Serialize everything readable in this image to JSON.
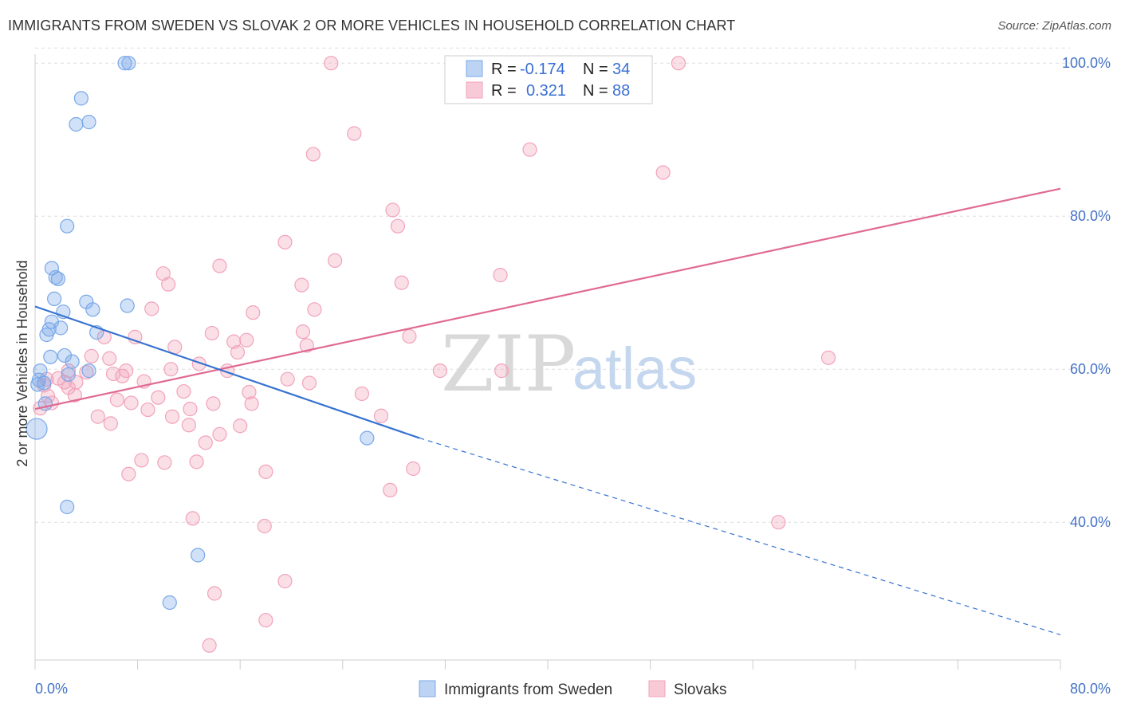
{
  "title": "IMMIGRANTS FROM SWEDEN VS SLOVAK 2 OR MORE VEHICLES IN HOUSEHOLD CORRELATION CHART",
  "source": "Source: ZipAtlas.com",
  "watermark": {
    "zip": "ZIP",
    "atlas": "atlas"
  },
  "legend_box": {
    "rows": [
      {
        "r_label": "R =",
        "r_value": "-0.174",
        "n_label": "N =",
        "n_value": "34"
      },
      {
        "r_label": "R =",
        "r_value": "0.321",
        "n_label": "N =",
        "n_value": "88"
      }
    ]
  },
  "chart_data": {
    "type": "scatter",
    "title": "IMMIGRANTS FROM SWEDEN VS SLOVAK 2 OR MORE VEHICLES IN HOUSEHOLD CORRELATION CHART",
    "xlabel": "",
    "ylabel": "2 or more Vehicles in Household",
    "xlim": [
      0,
      80
    ],
    "ylim": [
      22,
      102
    ],
    "x_tick_labels": [
      "0.0%",
      "80.0%"
    ],
    "y_ticks": [
      40,
      60,
      80,
      100
    ],
    "y_tick_labels": [
      "40.0%",
      "60.0%",
      "80.0%",
      "100.0%"
    ],
    "grid": true,
    "legend_placement": "bottom",
    "colors": {
      "Immigrants from Sweden": "#7aa8e8",
      "Slovaks": "#f2a3bb",
      "sweden_line": "#3572d0",
      "slovak_line": "#e06a93"
    },
    "series": [
      {
        "name": "Immigrants from Sweden",
        "r": -0.174,
        "n": 34,
        "trend": {
          "x0": 0,
          "y0": 68.2,
          "x1": 30,
          "y1": 51.0,
          "dashed_to_x": 80,
          "dashed_to_y": 25.3
        },
        "points": [
          [
            7.0,
            100.0
          ],
          [
            7.3,
            100.0
          ],
          [
            3.6,
            95.4
          ],
          [
            3.2,
            92.0
          ],
          [
            4.2,
            92.3
          ],
          [
            2.5,
            78.7
          ],
          [
            1.3,
            73.2
          ],
          [
            1.6,
            72.0
          ],
          [
            1.8,
            71.8
          ],
          [
            1.5,
            69.2
          ],
          [
            4.0,
            68.8
          ],
          [
            7.2,
            68.3
          ],
          [
            2.2,
            67.5
          ],
          [
            4.5,
            67.8
          ],
          [
            1.3,
            66.2
          ],
          [
            1.1,
            65.2
          ],
          [
            0.9,
            64.5
          ],
          [
            2.0,
            65.4
          ],
          [
            4.8,
            64.8
          ],
          [
            1.2,
            61.6
          ],
          [
            2.3,
            61.8
          ],
          [
            2.9,
            61.0
          ],
          [
            0.4,
            59.8
          ],
          [
            2.6,
            59.3
          ],
          [
            4.2,
            59.8
          ],
          [
            0.3,
            58.6
          ],
          [
            0.7,
            58.2
          ],
          [
            0.2,
            58.0
          ],
          [
            0.8,
            55.5
          ],
          [
            0.0,
            52.2
          ],
          [
            25.9,
            51.0
          ],
          [
            2.5,
            42.0
          ],
          [
            12.7,
            35.7
          ],
          [
            10.5,
            29.5
          ]
        ]
      },
      {
        "name": "Slovaks",
        "r": 0.321,
        "n": 88,
        "trend": {
          "x0": 0,
          "y0": 54.8,
          "x1": 80,
          "y1": 83.6
        },
        "points": [
          [
            23.1,
            100.0
          ],
          [
            37.5,
            100.0
          ],
          [
            50.2,
            100.0
          ],
          [
            24.9,
            90.8
          ],
          [
            21.7,
            88.1
          ],
          [
            38.6,
            88.7
          ],
          [
            49.0,
            85.7
          ],
          [
            27.9,
            80.8
          ],
          [
            28.3,
            78.7
          ],
          [
            19.5,
            76.6
          ],
          [
            23.4,
            74.2
          ],
          [
            14.4,
            73.5
          ],
          [
            10.0,
            72.5
          ],
          [
            10.4,
            71.1
          ],
          [
            28.6,
            71.3
          ],
          [
            36.3,
            72.3
          ],
          [
            20.8,
            71.0
          ],
          [
            9.1,
            67.9
          ],
          [
            17.0,
            67.4
          ],
          [
            21.8,
            67.8
          ],
          [
            7.8,
            64.2
          ],
          [
            13.8,
            64.7
          ],
          [
            15.5,
            63.6
          ],
          [
            16.5,
            63.8
          ],
          [
            20.9,
            64.9
          ],
          [
            29.2,
            64.3
          ],
          [
            5.4,
            64.2
          ],
          [
            10.9,
            62.9
          ],
          [
            21.2,
            63.1
          ],
          [
            15.8,
            62.2
          ],
          [
            4.4,
            61.7
          ],
          [
            5.8,
            61.4
          ],
          [
            12.8,
            60.7
          ],
          [
            15.0,
            59.8
          ],
          [
            10.6,
            60.0
          ],
          [
            7.1,
            59.8
          ],
          [
            2.6,
            59.8
          ],
          [
            4.0,
            59.6
          ],
          [
            6.1,
            59.4
          ],
          [
            6.8,
            59.1
          ],
          [
            0.9,
            58.7
          ],
          [
            1.8,
            58.8
          ],
          [
            2.3,
            58.3
          ],
          [
            3.2,
            58.3
          ],
          [
            8.5,
            58.4
          ],
          [
            0.7,
            57.9
          ],
          [
            2.6,
            57.6
          ],
          [
            11.6,
            57.1
          ],
          [
            1.0,
            56.5
          ],
          [
            3.1,
            56.6
          ],
          [
            6.4,
            56.0
          ],
          [
            7.5,
            55.6
          ],
          [
            9.6,
            56.3
          ],
          [
            12.1,
            54.8
          ],
          [
            13.9,
            55.5
          ],
          [
            0.4,
            54.9
          ],
          [
            8.8,
            54.7
          ],
          [
            16.9,
            55.5
          ],
          [
            1.3,
            55.6
          ],
          [
            21.4,
            58.2
          ],
          [
            31.6,
            59.8
          ],
          [
            19.7,
            58.7
          ],
          [
            16.7,
            57.0
          ],
          [
            25.5,
            56.8
          ],
          [
            4.9,
            53.8
          ],
          [
            10.7,
            53.8
          ],
          [
            16.0,
            52.6
          ],
          [
            12.0,
            52.7
          ],
          [
            27.0,
            53.9
          ],
          [
            13.3,
            50.4
          ],
          [
            14.4,
            51.5
          ],
          [
            5.9,
            52.9
          ],
          [
            8.3,
            48.1
          ],
          [
            10.1,
            47.8
          ],
          [
            12.6,
            47.9
          ],
          [
            18.0,
            46.6
          ],
          [
            7.3,
            46.3
          ],
          [
            29.5,
            47.0
          ],
          [
            27.7,
            44.2
          ],
          [
            12.3,
            40.5
          ],
          [
            17.9,
            39.5
          ],
          [
            58.0,
            40.0
          ],
          [
            19.5,
            32.3
          ],
          [
            14.0,
            30.7
          ],
          [
            18.0,
            27.2
          ],
          [
            13.6,
            23.9
          ],
          [
            61.9,
            61.5
          ],
          [
            36.4,
            59.8
          ]
        ]
      }
    ]
  },
  "bottom_legend": {
    "items": [
      {
        "label": "Immigrants from Sweden"
      },
      {
        "label": "Slovaks"
      }
    ]
  }
}
